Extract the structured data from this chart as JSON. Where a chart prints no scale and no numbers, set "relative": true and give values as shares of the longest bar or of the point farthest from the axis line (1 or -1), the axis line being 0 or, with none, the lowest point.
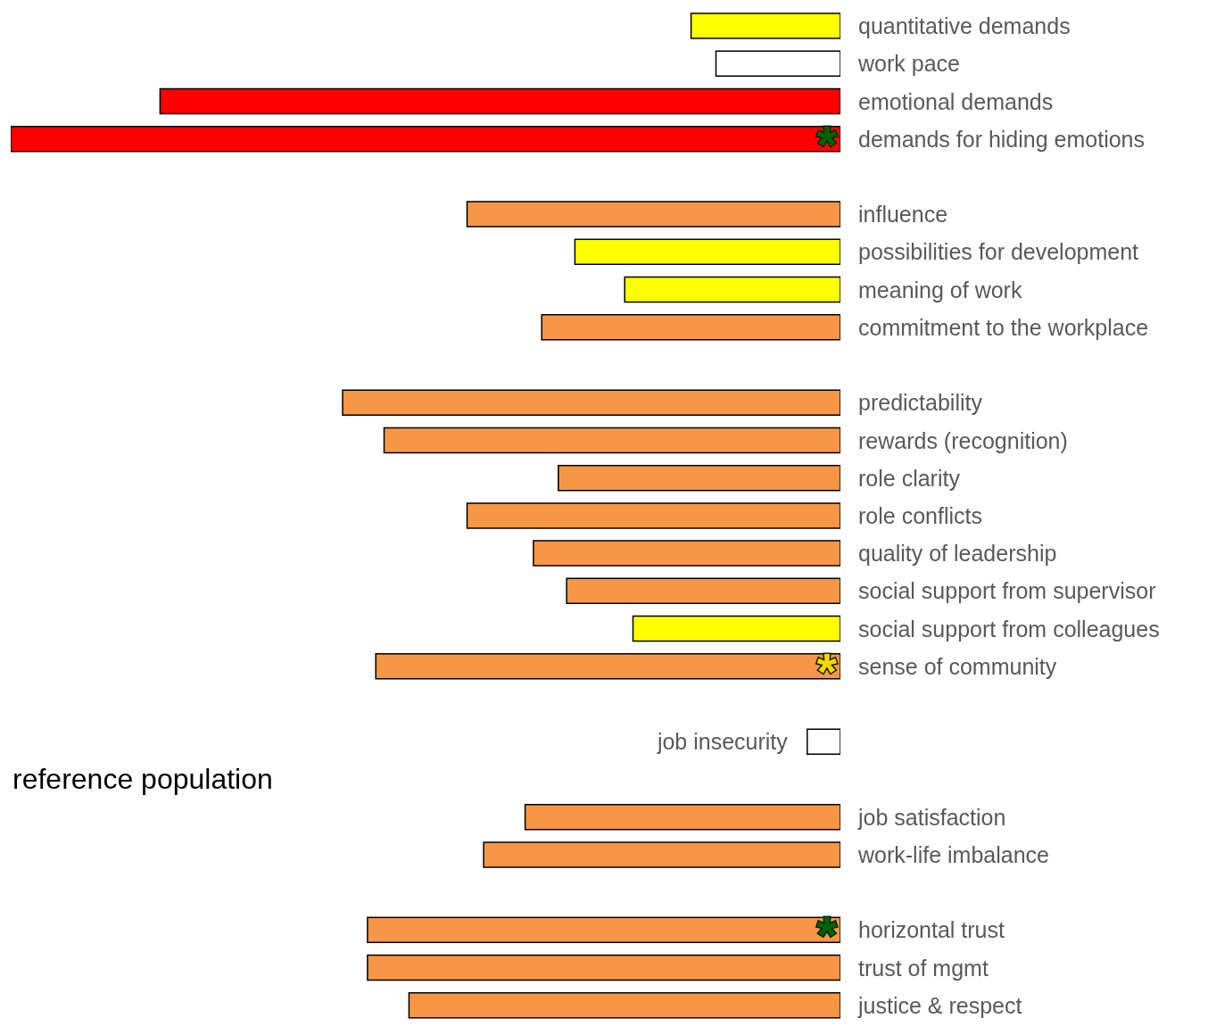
{
  "chart_data": {
    "type": "bar",
    "orientation": "horizontal",
    "relative": true,
    "categories": [
      "quantitative demands",
      "work pace",
      "emotional demands",
      "demands for hiding emotions",
      null,
      "influence",
      "possibilities for development",
      "meaning of work",
      "commitment to the workplace",
      null,
      "predictability",
      "rewards (recognition)",
      "role clarity",
      "role conflicts",
      "quality of leadership",
      "social support from supervisor",
      "social support from colleagues",
      "sense of community",
      null,
      "job insecurity",
      null,
      "job satisfaction",
      "work-life imbalance",
      null,
      "horizontal trust",
      "trust of mgmt",
      "justice & respect"
    ],
    "values": [
      -0.18,
      -0.15,
      -0.82,
      -1,
      null,
      -0.45,
      -0.32,
      -0.26,
      -0.36,
      null,
      -0.6,
      -0.55,
      -0.34,
      -0.45,
      -0.37,
      -0.33,
      -0.25,
      -0.56,
      null,
      -0.04,
      null,
      -0.38,
      -0.43,
      null,
      -0.57,
      -0.57,
      -0.52
    ],
    "colors": [
      "#ffff00",
      "#ffffff",
      "#ff0000",
      "#ff0000",
      null,
      "#f79646",
      "#ffff00",
      "#ffff00",
      "#f79646",
      null,
      "#f79646",
      "#f79646",
      "#f79646",
      "#f79646",
      "#f79646",
      "#f79646",
      "#ffff00",
      "#f79646",
      null,
      "#ffffff",
      null,
      "#f79646",
      "#f79646",
      null,
      "#f79646",
      "#f79646",
      "#f79646"
    ],
    "annotations": [
      {
        "text": "*",
        "y": "demands for hiding emotions"
      },
      {
        "text": "*",
        "y": "sense of community"
      },
      "reference population",
      {
        "text": "*",
        "y": "horizontal trust"
      }
    ]
  }
}
